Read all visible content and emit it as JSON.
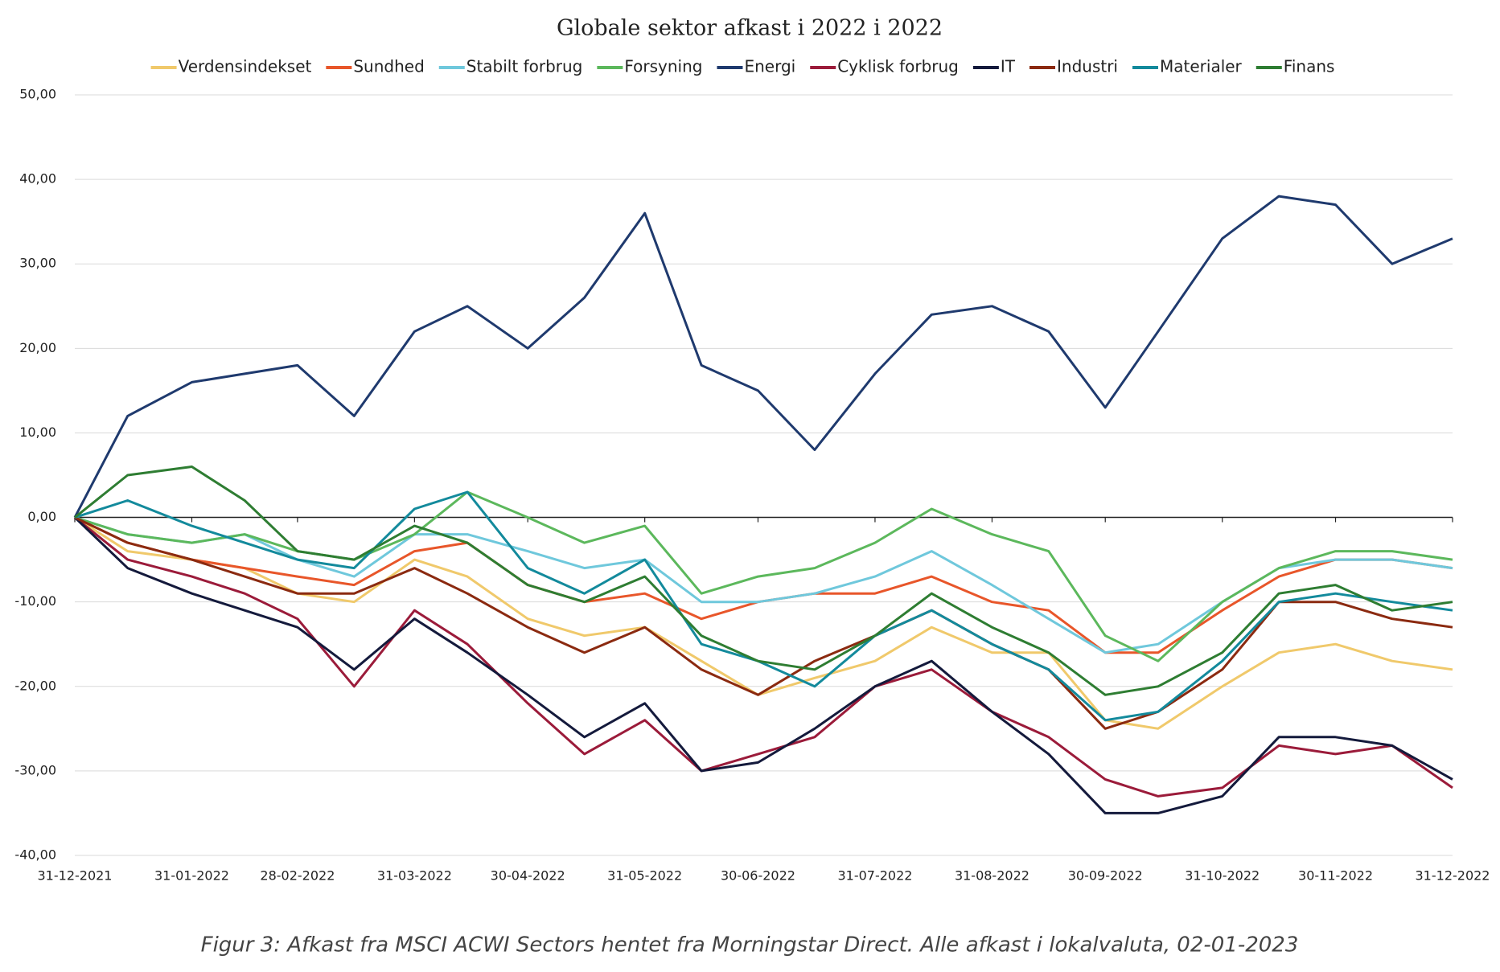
{
  "chart_data": {
    "type": "line",
    "title": "Globale sektor afkast i 2022 i 2022",
    "caption": "Figur 3: Afkast fra MSCI ACWI Sectors hentet fra Morningstar Direct. Alle afkast i lokalvaluta, 02-01-2023",
    "x": [
      "31-12-2021",
      "14-01-2022",
      "31-01-2022",
      "14-02-2022",
      "28-02-2022",
      "15-03-2022",
      "31-03-2022",
      "14-04-2022",
      "30-04-2022",
      "15-05-2022",
      "31-05-2022",
      "15-06-2022",
      "30-06-2022",
      "15-07-2022",
      "31-07-2022",
      "15-08-2022",
      "31-08-2022",
      "15-09-2022",
      "30-09-2022",
      "14-10-2022",
      "31-10-2022",
      "15-11-2022",
      "30-11-2022",
      "15-12-2022",
      "31-12-2022"
    ],
    "series": [
      {
        "name": "Verdensindekset",
        "color": "#f0c96b",
        "values": [
          0,
          -4,
          -5,
          -6,
          -9,
          -10,
          -5,
          -7,
          -12,
          -14,
          -13,
          -17,
          -21,
          -19,
          -17,
          -13,
          -16,
          -16,
          -24,
          -25,
          -20,
          -16,
          -15,
          -17,
          -18
        ]
      },
      {
        "name": "Sundhed",
        "color": "#e8562a",
        "values": [
          0,
          -3,
          -5,
          -6,
          -7,
          -8,
          -4,
          -3,
          -8,
          -10,
          -9,
          -12,
          -10,
          -9,
          -9,
          -7,
          -10,
          -11,
          -16,
          -16,
          -11,
          -7,
          -5,
          -5,
          -6
        ]
      },
      {
        "name": "Stabilt forbrug",
        "color": "#6fc8dc",
        "values": [
          0,
          -2,
          -3,
          -2,
          -5,
          -7,
          -2,
          -2,
          -4,
          -6,
          -5,
          -10,
          -10,
          -9,
          -7,
          -4,
          -8,
          -12,
          -16,
          -15,
          -10,
          -6,
          -5,
          -5,
          -6
        ]
      },
      {
        "name": "Forsyning",
        "color": "#5cb85c",
        "values": [
          0,
          -2,
          -3,
          -2,
          -4,
          -5,
          -2,
          3,
          0,
          -3,
          -1,
          -9,
          -7,
          -6,
          -3,
          1,
          -2,
          -4,
          -14,
          -17,
          -10,
          -6,
          -4,
          -4,
          -5
        ]
      },
      {
        "name": "Energi",
        "color": "#1f3a6e",
        "values": [
          0,
          12,
          16,
          17,
          18,
          12,
          22,
          25,
          20,
          26,
          36,
          18,
          15,
          8,
          17,
          24,
          25,
          22,
          13,
          22,
          33,
          38,
          37,
          30,
          33
        ]
      },
      {
        "name": "Cyklisk forbrug",
        "color": "#9b1b3a",
        "values": [
          0,
          -5,
          -7,
          -9,
          -12,
          -20,
          -11,
          -15,
          -22,
          -28,
          -24,
          -30,
          -28,
          -26,
          -20,
          -18,
          -23,
          -26,
          -31,
          -33,
          -32,
          -27,
          -28,
          -27,
          -32
        ]
      },
      {
        "name": "IT",
        "color": "#141a3c",
        "values": [
          0,
          -6,
          -9,
          -11,
          -13,
          -18,
          -12,
          -16,
          -21,
          -26,
          -22,
          -30,
          -29,
          -25,
          -20,
          -17,
          -23,
          -28,
          -35,
          -35,
          -33,
          -26,
          -26,
          -27,
          -31
        ]
      },
      {
        "name": "Industri",
        "color": "#8b2a10",
        "values": [
          0,
          -3,
          -5,
          -7,
          -9,
          -9,
          -6,
          -9,
          -13,
          -16,
          -13,
          -18,
          -21,
          -17,
          -14,
          -11,
          -15,
          -18,
          -25,
          -23,
          -18,
          -10,
          -10,
          -12,
          -13
        ]
      },
      {
        "name": "Materialer",
        "color": "#138a9c",
        "values": [
          0,
          2,
          -1,
          -3,
          -5,
          -6,
          1,
          3,
          -6,
          -9,
          -5,
          -15,
          -17,
          -20,
          -14,
          -11,
          -15,
          -18,
          -24,
          -23,
          -17,
          -10,
          -9,
          -10,
          -11
        ]
      },
      {
        "name": "Finans",
        "color": "#2e7d32",
        "values": [
          0,
          5,
          6,
          2,
          -4,
          -5,
          -1,
          -3,
          -8,
          -10,
          -7,
          -14,
          -17,
          -18,
          -14,
          -9,
          -13,
          -16,
          -21,
          -20,
          -16,
          -9,
          -8,
          -11,
          -10
        ]
      }
    ],
    "xlim": [
      "31-12-2021",
      "31-12-2022"
    ],
    "xticks": [
      "31-12-2021",
      "31-01-2022",
      "28-02-2022",
      "31-03-2022",
      "30-04-2022",
      "31-05-2022",
      "30-06-2022",
      "31-07-2022",
      "31-08-2022",
      "30-09-2022",
      "31-10-2022",
      "30-11-2022",
      "31-12-2022"
    ],
    "ylim": [
      -40,
      50
    ],
    "yticks": [
      {
        "value": -40,
        "label": "-40,00"
      },
      {
        "value": -30,
        "label": "-30,00"
      },
      {
        "value": -20,
        "label": "-20,00"
      },
      {
        "value": -10,
        "label": "-10,00"
      },
      {
        "value": 0,
        "label": "0,00"
      },
      {
        "value": 10,
        "label": "10,00"
      },
      {
        "value": 20,
        "label": "20,00"
      },
      {
        "value": 30,
        "label": "30,00"
      },
      {
        "value": 40,
        "label": "40,00"
      },
      {
        "value": 50,
        "label": "50,00"
      }
    ],
    "grid": true,
    "legend": "top"
  }
}
